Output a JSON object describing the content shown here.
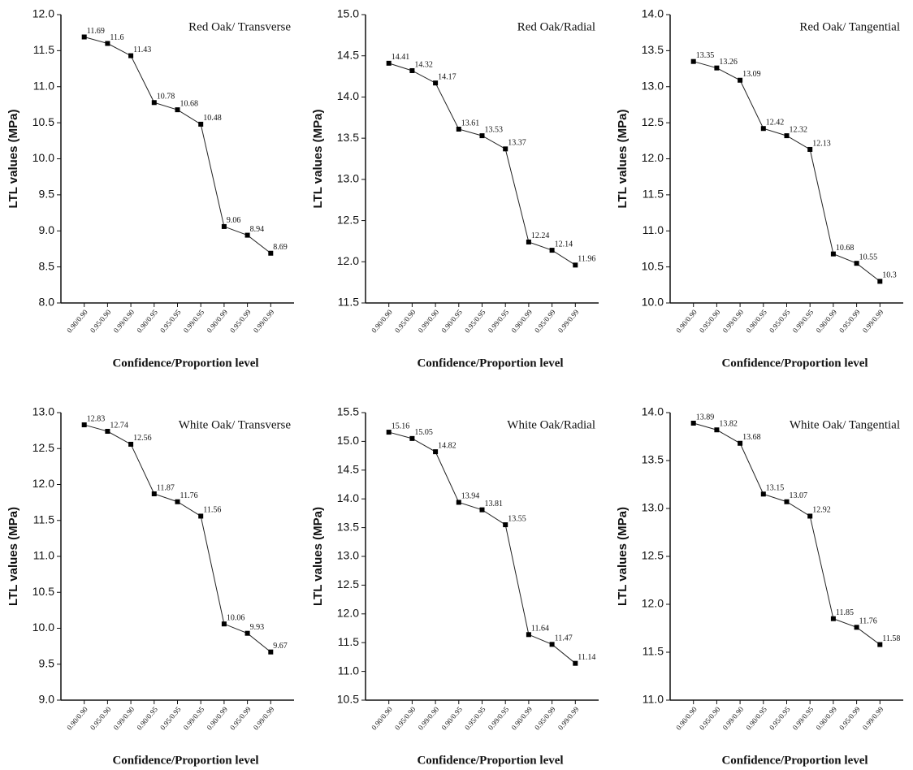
{
  "chart_data": [
    {
      "type": "line",
      "title": "Red Oak/ Transverse",
      "x_label": "Confidence/Proportion level",
      "y_label": "LTL values (MPa)",
      "categories": [
        "0.90/0.90",
        "0.95/0.90",
        "0.99/0.90",
        "0.90/0.95",
        "0.95/0.95",
        "0.99/0.95",
        "0.90/0.99",
        "0.95/0.99",
        "0.99/0.99"
      ],
      "values": [
        11.69,
        11.6,
        11.43,
        10.78,
        10.68,
        10.48,
        9.06,
        8.94,
        8.69
      ],
      "color": "#222222",
      "ylim": [
        8,
        12
      ],
      "yticks": [
        {
          "value": 8,
          "label": "8.0"
        },
        8.5,
        {
          "value": 9,
          "label": "9.0"
        },
        9.5,
        {
          "value": 10,
          "label": "10.0"
        },
        10.5,
        {
          "value": 11,
          "label": "11.0"
        },
        11.5,
        {
          "value": 12,
          "label": "12.0"
        }
      ]
    },
    {
      "type": "line",
      "title": "Red Oak/Radial",
      "x_label": "Confidence/Proportion level",
      "y_label": "LTL values (MPa)",
      "categories": [
        "0.90/0.90",
        "0.95/0.90",
        "0.99/0.90",
        "0.90/0.95",
        "0.95/0.95",
        "0.99/0.95",
        "0.90/0.99",
        "0.95/0.99",
        "0.99/0.99"
      ],
      "values": [
        14.41,
        14.32,
        14.17,
        13.61,
        13.53,
        13.37,
        12.24,
        12.14,
        11.96
      ],
      "color": "#222222",
      "ylim": [
        11.5,
        15
      ],
      "yticks": [
        11.5,
        {
          "value": 12,
          "label": "12.0"
        },
        12.5,
        {
          "value": 13,
          "label": "13.0"
        },
        13.5,
        {
          "value": 14,
          "label": "14.0"
        },
        14.5,
        {
          "value": 15,
          "label": "15.0"
        }
      ]
    },
    {
      "type": "line",
      "title": "Red Oak/ Tangential",
      "x_label": "Confidence/Proportion level",
      "y_label": "LTL values (MPa)",
      "categories": [
        "0.90/0.90",
        "0.95/0.90",
        "0.99/0.90",
        "0.90/0.95",
        "0.95/0.95",
        "0.99/0.95",
        "0.90/0.99",
        "0.95/0.99",
        "0.99/0.99"
      ],
      "values": [
        13.35,
        13.26,
        13.09,
        12.42,
        12.32,
        12.13,
        10.68,
        10.55,
        10.3
      ],
      "color": "#222222",
      "ylim": [
        10,
        14
      ],
      "yticks": [
        {
          "value": 10,
          "label": "10.0"
        },
        10.5,
        {
          "value": 11,
          "label": "11.0"
        },
        11.5,
        {
          "value": 12,
          "label": "12.0"
        },
        12.5,
        {
          "value": 13,
          "label": "13.0"
        },
        13.5,
        {
          "value": 14,
          "label": "14.0"
        }
      ]
    },
    {
      "type": "line",
      "title": "White Oak/ Transverse",
      "x_label": "Confidence/Proportion level",
      "y_label": "LTL values (MPa)",
      "categories": [
        "0.90/0.90",
        "0.95/0.90",
        "0.99/0.90",
        "0.90/0.95",
        "0.95/0.95",
        "0.99/0.95",
        "0.90/0.99",
        "0.95/0.99",
        "0.99/0.99"
      ],
      "values": [
        12.83,
        12.74,
        12.56,
        11.87,
        11.76,
        11.56,
        10.06,
        9.93,
        9.67
      ],
      "color": "#222222",
      "ylim": [
        9,
        13
      ],
      "yticks": [
        {
          "value": 9,
          "label": "9.0"
        },
        9.5,
        {
          "value": 10,
          "label": "10.0"
        },
        10.5,
        {
          "value": 11,
          "label": "11.0"
        },
        11.5,
        {
          "value": 12,
          "label": "12.0"
        },
        12.5,
        {
          "value": 13,
          "label": "13.0"
        }
      ]
    },
    {
      "type": "line",
      "title": "White Oak/Radial",
      "x_label": "Confidence/Proportion level",
      "y_label": "LTL values (MPa)",
      "categories": [
        "0.90/0.90",
        "0.95/0.90",
        "0.99/0.90",
        "0.90/0.95",
        "0.95/0.95",
        "0.99/0.95",
        "0.90/0.99",
        "0.95/0.99",
        "0.99/0.99"
      ],
      "values": [
        15.16,
        15.05,
        14.82,
        13.94,
        13.81,
        13.55,
        11.64,
        11.47,
        11.14
      ],
      "color": "#222222",
      "ylim": [
        10.5,
        15.5
      ],
      "yticks": [
        10.5,
        {
          "value": 11,
          "label": "11.0"
        },
        11.5,
        {
          "value": 12,
          "label": "12.0"
        },
        12.5,
        {
          "value": 13,
          "label": "13.0"
        },
        13.5,
        {
          "value": 14,
          "label": "14.0"
        },
        14.5,
        {
          "value": 15,
          "label": "15.0"
        },
        15.5
      ]
    },
    {
      "type": "line",
      "title": "White Oak/ Tangential",
      "x_label": "Confidence/Proportion level",
      "y_label": "LTL values (MPa)",
      "categories": [
        "0.90/0.90",
        "0.95/0.90",
        "0.99/0.90",
        "0.90/0.95",
        "0.95/0.95",
        "0.99/0.95",
        "0.90/0.99",
        "0.95/0.99",
        "0.99/0.99"
      ],
      "values": [
        13.89,
        13.82,
        13.68,
        13.15,
        13.07,
        12.92,
        11.85,
        11.76,
        11.58
      ],
      "color": "#222222",
      "ylim": [
        11,
        14
      ],
      "yticks": [
        {
          "value": 11,
          "label": "11.0"
        },
        11.5,
        {
          "value": 12,
          "label": "12.0"
        },
        12.5,
        {
          "value": 13,
          "label": "13.0"
        },
        13.5,
        {
          "value": 14,
          "label": "14.0"
        }
      ]
    }
  ]
}
